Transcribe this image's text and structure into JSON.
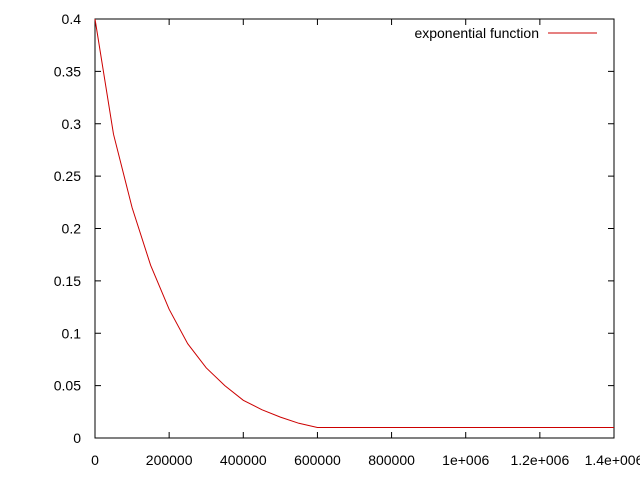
{
  "chart_data": {
    "type": "line",
    "title": "",
    "xlabel": "",
    "ylabel": "",
    "xlim": [
      0,
      1400000
    ],
    "ylim": [
      0,
      0.4
    ],
    "grid": false,
    "legend_position": "top-right",
    "x_ticks": [
      {
        "value": 0,
        "label": "0"
      },
      {
        "value": 200000,
        "label": "200000"
      },
      {
        "value": 400000,
        "label": "400000"
      },
      {
        "value": 600000,
        "label": "600000"
      },
      {
        "value": 800000,
        "label": "800000"
      },
      {
        "value": 1000000,
        "label": "1e+006"
      },
      {
        "value": 1200000,
        "label": "1.2e+006"
      },
      {
        "value": 1400000,
        "label": "1.4e+006"
      }
    ],
    "y_ticks": [
      {
        "value": 0,
        "label": "0"
      },
      {
        "value": 0.05,
        "label": "0.05"
      },
      {
        "value": 0.1,
        "label": "0.1"
      },
      {
        "value": 0.15,
        "label": "0.15"
      },
      {
        "value": 0.2,
        "label": "0.2"
      },
      {
        "value": 0.25,
        "label": "0.25"
      },
      {
        "value": 0.3,
        "label": "0.3"
      },
      {
        "value": 0.35,
        "label": "0.35"
      },
      {
        "value": 0.4,
        "label": "0.4"
      }
    ],
    "series": [
      {
        "name": "exponential function",
        "color": "#cc0000",
        "x": [
          0,
          50000,
          100000,
          150000,
          200000,
          250000,
          300000,
          350000,
          400000,
          450000,
          500000,
          550000,
          600000,
          700000,
          800000,
          900000,
          1000000,
          1100000,
          1200000,
          1300000,
          1400000
        ],
        "y": [
          0.4,
          0.29,
          0.22,
          0.165,
          0.123,
          0.09,
          0.067,
          0.05,
          0.036,
          0.027,
          0.02,
          0.014,
          0.01,
          0.01,
          0.01,
          0.01,
          0.01,
          0.01,
          0.01,
          0.01,
          0.01
        ]
      }
    ]
  }
}
